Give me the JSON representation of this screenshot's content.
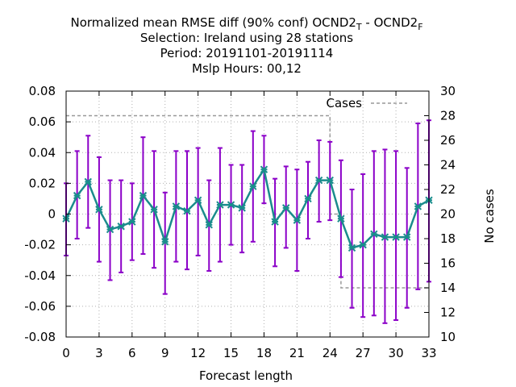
{
  "chart_data": {
    "type": "line",
    "title_lines": [
      "Normalized mean RMSE diff (90% conf) OCND2",
      "Selection: Ireland using    28 stations",
      "Period: 20191101-20191114",
      "Mslp   Hours:  00,12"
    ],
    "title_sub": {
      "t": "T",
      "mid": " - OCND2",
      "f": "F"
    },
    "xlabel": "Forecast length",
    "ylabel_right": "No cases",
    "xlim": [
      0,
      33
    ],
    "ylim": [
      -0.08,
      0.08
    ],
    "y2lim": [
      10,
      30
    ],
    "x_ticks": [
      0,
      3,
      6,
      9,
      12,
      15,
      18,
      21,
      24,
      27,
      30,
      33
    ],
    "y_tick_labels": [
      "-0.08",
      "-0.06",
      "-0.04",
      "-0.02",
      "0",
      "0.02",
      "0.04",
      "0.06",
      "0.08"
    ],
    "y_ticks": [
      -0.08,
      -0.06,
      -0.04,
      -0.02,
      0,
      0.02,
      0.04,
      0.06,
      0.08
    ],
    "y2_ticks": [
      10,
      12,
      14,
      16,
      18,
      20,
      22,
      24,
      26,
      28,
      30
    ],
    "grid": true,
    "legend": {
      "position": "top-right",
      "entries": [
        "Cases"
      ]
    },
    "colors": {
      "mean": "#1a8c8c",
      "errorbar": "#8b00c8",
      "cases": "#999999",
      "grid": "#b0b0b0"
    },
    "series": [
      {
        "x": [
          0,
          1,
          2,
          3,
          4,
          5,
          6,
          7,
          8,
          9,
          10,
          11,
          12,
          13,
          14,
          15,
          16,
          17,
          18,
          19,
          20,
          21,
          22,
          23,
          24,
          25,
          26,
          27,
          28,
          29,
          30,
          31,
          32,
          33
        ],
        "y": [
          -0.003,
          0.012,
          0.021,
          0.003,
          -0.01,
          -0.008,
          -0.005,
          0.012,
          0.003,
          -0.018,
          0.005,
          0.002,
          0.009,
          -0.007,
          0.006,
          0.006,
          0.004,
          0.018,
          0.029,
          -0.005,
          0.004,
          -0.004,
          0.01,
          0.022,
          0.022,
          -0.003,
          -0.022,
          -0.02,
          -0.013,
          -0.015,
          -0.015,
          -0.015,
          0.005,
          0.009
        ],
        "y_low": [
          -0.027,
          -0.016,
          -0.009,
          -0.031,
          -0.043,
          -0.038,
          -0.03,
          -0.026,
          -0.035,
          -0.052,
          -0.031,
          -0.036,
          -0.027,
          -0.037,
          -0.031,
          -0.02,
          -0.025,
          -0.018,
          0.007,
          -0.034,
          -0.022,
          -0.037,
          -0.016,
          -0.005,
          -0.004,
          -0.041,
          -0.061,
          -0.067,
          -0.066,
          -0.071,
          -0.069,
          -0.061,
          -0.049,
          -0.044
        ]
      },
      {
        "y_high": [
          0.02,
          0.041,
          0.051,
          0.037,
          0.022,
          0.022,
          0.02,
          0.05,
          0.041,
          0.014,
          0.041,
          0.041,
          0.043,
          0.022,
          0.043,
          0.032,
          0.032,
          0.054,
          0.051,
          0.023,
          0.031,
          0.029,
          0.034,
          0.048,
          0.047,
          0.035,
          0.016,
          0.026,
          0.041,
          0.042,
          0.041,
          0.03,
          0.059,
          0.061
        ]
      },
      {
        "name": "Cases",
        "x": [
          0,
          24,
          24,
          25,
          25,
          33
        ],
        "y": [
          28,
          28,
          20,
          20,
          14,
          14
        ]
      }
    ]
  }
}
